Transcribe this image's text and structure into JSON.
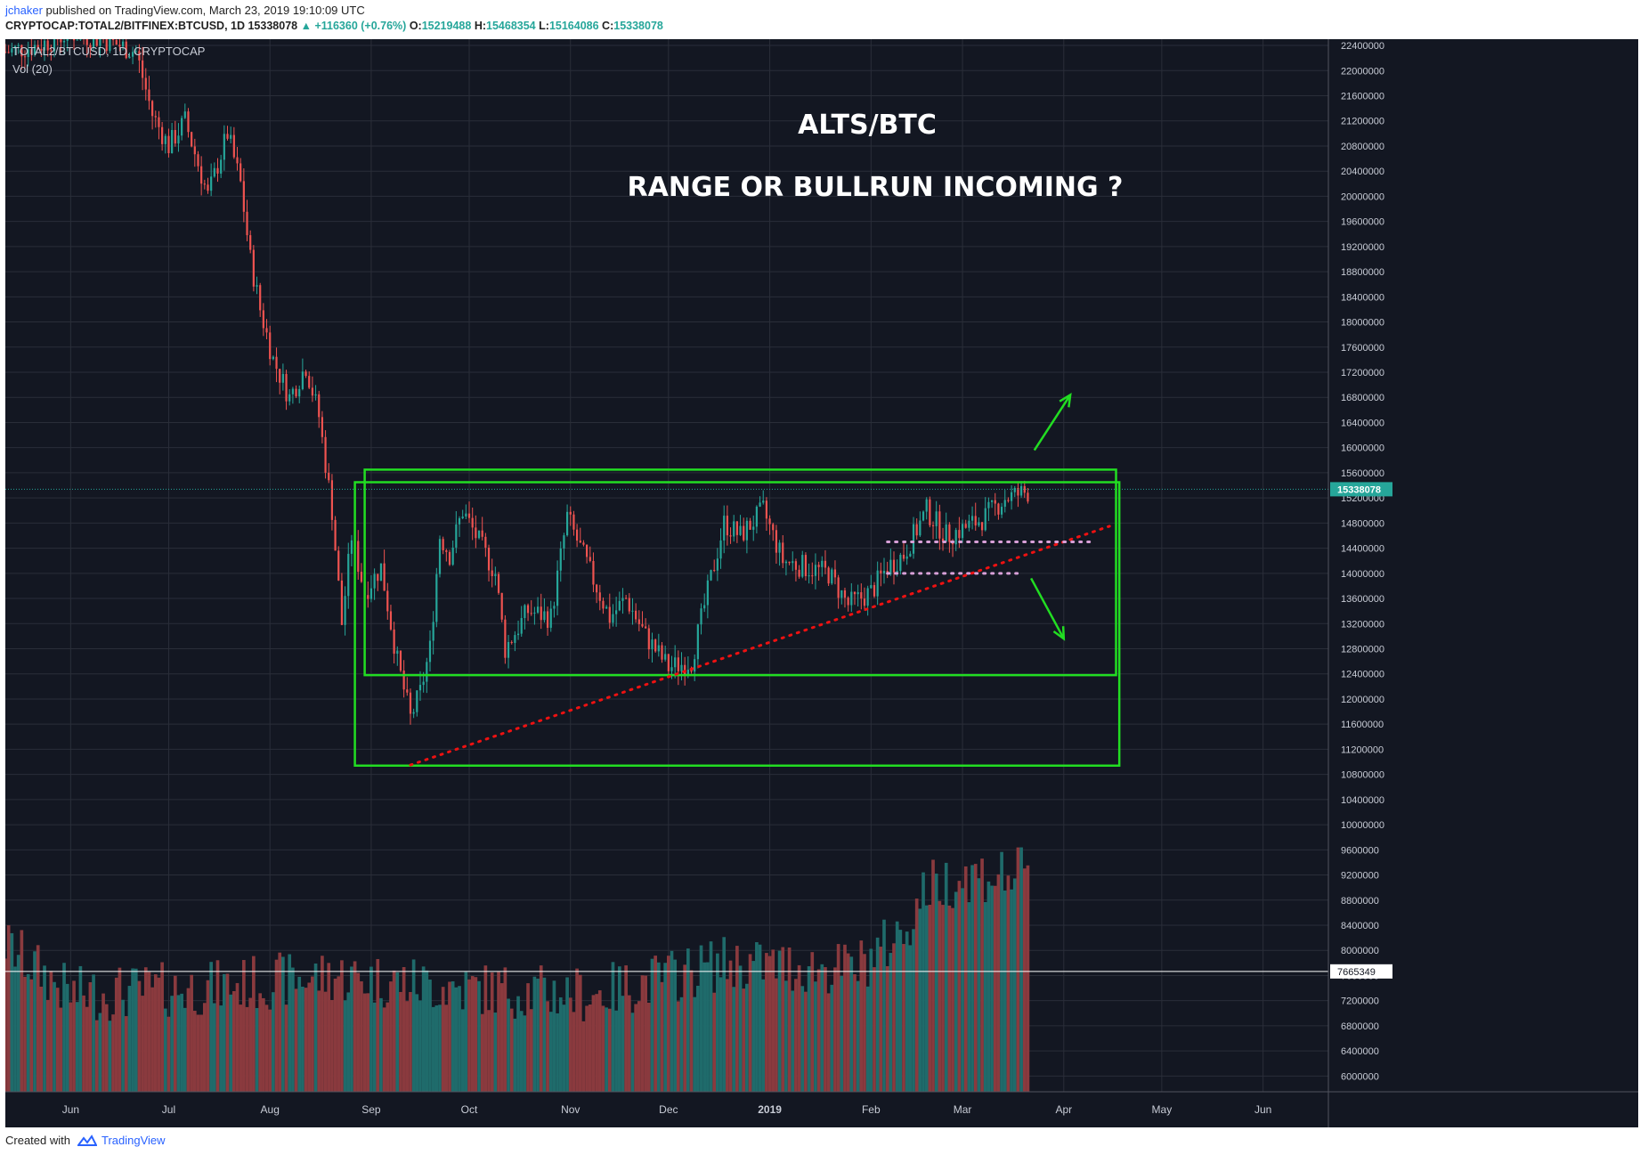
{
  "header": {
    "author": "jchaker",
    "published_text": "published on TradingView.com, March 23, 2019 19:10:09 UTC",
    "symbol_line": "CRYPTOCAP:TOTAL2/BITFINEX:BTCUSD, 1D",
    "last": "15338078",
    "change": "+116360 (+0.76%)",
    "open_label": "O:",
    "open": "15219488",
    "high_label": "H:",
    "high": "15468354",
    "low_label": "L:",
    "low": "15164086",
    "close_label": "C:",
    "close": "15338078"
  },
  "legend": {
    "symbol": "TOTAL2/BTCUSD, 1D, CRYPTOCAP",
    "volume": "Vol (20)"
  },
  "annotations": {
    "title": "ALTS/BTC",
    "subtitle": "RANGE OR BULLRUN INCOMING ?"
  },
  "footer": {
    "created_with": "Created with",
    "brand": "TradingView"
  },
  "colors": {
    "background": "#131722",
    "grid": "#2a2e39",
    "up": "#26a69a",
    "down": "#ef5350",
    "volume_up": "#1f6b6b",
    "volume_down": "#8a3a3e",
    "range_box": "#22dd22",
    "trendline": "#ee1111",
    "dotted_levels": "#d8a0d8",
    "price_line": "#26a69a",
    "volume_ma_line": "#ffffff"
  },
  "chart_data": {
    "type": "candlestick",
    "x_labels": [
      "Jun",
      "Jul",
      "Aug",
      "Sep",
      "Oct",
      "Nov",
      "Dec",
      "2019",
      "Feb",
      "Mar",
      "Apr",
      "May",
      "Jun"
    ],
    "x_label_days": [
      0,
      30,
      61,
      92,
      122,
      153,
      183,
      214,
      245,
      273,
      304,
      334,
      365
    ],
    "x_range_days": [
      -20,
      385
    ],
    "y_ticks": [
      "22400000",
      "22000000",
      "21600000",
      "21200000",
      "20800000",
      "20400000",
      "20000000",
      "19600000",
      "19200000",
      "18800000",
      "18400000",
      "18000000",
      "17600000",
      "17200000",
      "16800000",
      "16400000",
      "16000000",
      "15600000",
      "15200000",
      "14800000",
      "14400000",
      "14000000",
      "13600000",
      "13200000",
      "12800000",
      "12400000",
      "12000000",
      "11600000",
      "11200000",
      "10800000",
      "10400000",
      "10000000",
      "9600000",
      "9200000",
      "8800000",
      "8400000",
      "8000000",
      "7600000",
      "7200000",
      "6800000",
      "6400000",
      "6000000"
    ],
    "y_range": [
      5750000,
      22500000
    ],
    "last_price": 15338078,
    "last_price_label": "15338078",
    "volume_ma_value": 7665349,
    "volume_ma_label": "7665349",
    "volume_axis_scale": "volume plotted in the lower panel, bar tops between 6000000 and 10000000 on price scale",
    "candle_anchors": [
      {
        "day": -20,
        "price": 22300000
      },
      {
        "day": -10,
        "price": 22400000
      },
      {
        "day": 0,
        "price": 22600000
      },
      {
        "day": 10,
        "price": 22500000
      },
      {
        "day": 20,
        "price": 22300000
      },
      {
        "day": 25,
        "price": 21300000
      },
      {
        "day": 30,
        "price": 20800000
      },
      {
        "day": 35,
        "price": 21200000
      },
      {
        "day": 42,
        "price": 20000000
      },
      {
        "day": 48,
        "price": 21000000
      },
      {
        "day": 52,
        "price": 20200000
      },
      {
        "day": 55,
        "price": 19000000
      },
      {
        "day": 58,
        "price": 18200000
      },
      {
        "day": 62,
        "price": 17400000
      },
      {
        "day": 67,
        "price": 16800000
      },
      {
        "day": 72,
        "price": 17300000
      },
      {
        "day": 76,
        "price": 16500000
      },
      {
        "day": 80,
        "price": 15000000
      },
      {
        "day": 83,
        "price": 13200000
      },
      {
        "day": 86,
        "price": 14600000
      },
      {
        "day": 90,
        "price": 13700000
      },
      {
        "day": 95,
        "price": 14100000
      },
      {
        "day": 100,
        "price": 12600000
      },
      {
        "day": 104,
        "price": 11700000
      },
      {
        "day": 107,
        "price": 12100000
      },
      {
        "day": 110,
        "price": 12800000
      },
      {
        "day": 113,
        "price": 14600000
      },
      {
        "day": 116,
        "price": 14300000
      },
      {
        "day": 120,
        "price": 15000000
      },
      {
        "day": 125,
        "price": 14500000
      },
      {
        "day": 130,
        "price": 14000000
      },
      {
        "day": 133,
        "price": 12800000
      },
      {
        "day": 140,
        "price": 13400000
      },
      {
        "day": 147,
        "price": 13300000
      },
      {
        "day": 152,
        "price": 14900000
      },
      {
        "day": 160,
        "price": 13900000
      },
      {
        "day": 165,
        "price": 13300000
      },
      {
        "day": 170,
        "price": 13600000
      },
      {
        "day": 176,
        "price": 13000000
      },
      {
        "day": 183,
        "price": 12500000
      },
      {
        "day": 190,
        "price": 12600000
      },
      {
        "day": 195,
        "price": 13700000
      },
      {
        "day": 200,
        "price": 14800000
      },
      {
        "day": 205,
        "price": 14600000
      },
      {
        "day": 212,
        "price": 15000000
      },
      {
        "day": 218,
        "price": 14200000
      },
      {
        "day": 225,
        "price": 14100000
      },
      {
        "day": 232,
        "price": 14000000
      },
      {
        "day": 238,
        "price": 13500000
      },
      {
        "day": 245,
        "price": 13700000
      },
      {
        "day": 250,
        "price": 14100000
      },
      {
        "day": 255,
        "price": 14300000
      },
      {
        "day": 262,
        "price": 15000000
      },
      {
        "day": 268,
        "price": 14600000
      },
      {
        "day": 273,
        "price": 14700000
      },
      {
        "day": 280,
        "price": 14900000
      },
      {
        "day": 286,
        "price": 15200000
      },
      {
        "day": 293,
        "price": 15300000
      }
    ],
    "volume_anchors": [
      {
        "day": -20,
        "value": 8100000
      },
      {
        "day": 0,
        "value": 7300000
      },
      {
        "day": 40,
        "value": 7400000
      },
      {
        "day": 80,
        "value": 7600000
      },
      {
        "day": 120,
        "value": 7400000
      },
      {
        "day": 160,
        "value": 7300000
      },
      {
        "day": 200,
        "value": 7800000
      },
      {
        "day": 240,
        "value": 7700000
      },
      {
        "day": 255,
        "value": 8300000
      },
      {
        "day": 262,
        "value": 9000000
      },
      {
        "day": 275,
        "value": 9200000
      },
      {
        "day": 293,
        "value": 9200000
      }
    ],
    "drawings": {
      "inner_box": {
        "day_start": 90,
        "day_end": 320,
        "price_top": 15650000,
        "price_bottom": 12380000
      },
      "outer_box": {
        "day_start": 87,
        "day_end": 321,
        "price_top": 15450000,
        "price_bottom": 10940000
      },
      "trendline": {
        "day_start": 104,
        "price_start": 10950000,
        "day_end": 318,
        "price_end": 14750000
      },
      "dotted_level_high": {
        "day_start": 250,
        "day_end": 312,
        "price": 14500000
      },
      "dotted_level_low": {
        "day_start": 250,
        "day_end": 291,
        "price": 14000000
      },
      "arrow_up": {
        "day_start": 295,
        "price_start": 15960000,
        "day_end": 306,
        "price_end": 16840000
      },
      "arrow_down": {
        "day_start": 294,
        "price_start": 13920000,
        "day_end": 304,
        "price_end": 12960000
      }
    }
  }
}
